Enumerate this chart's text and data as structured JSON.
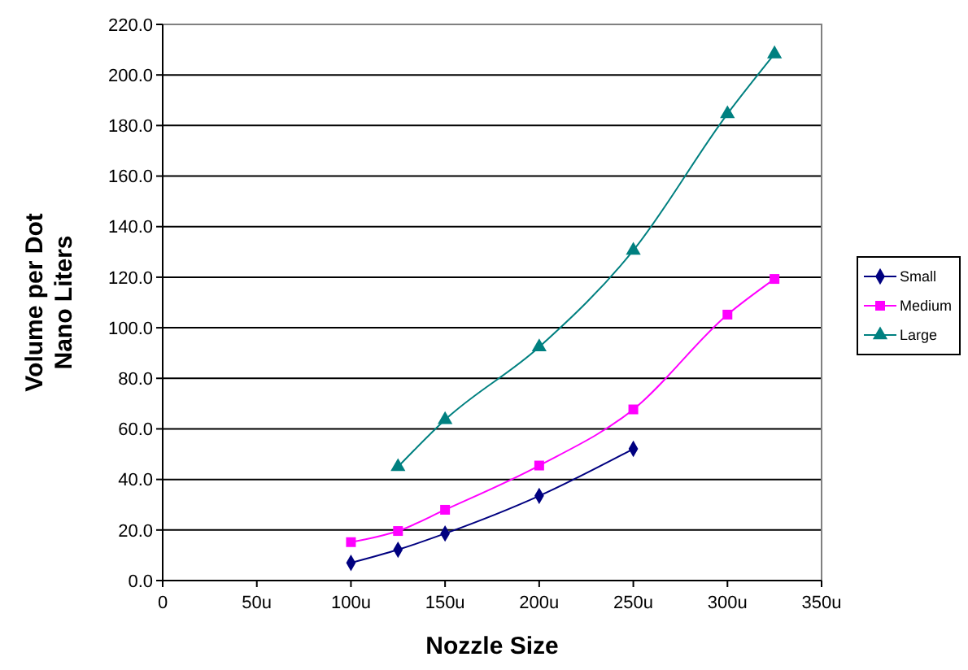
{
  "chart_data": {
    "type": "line",
    "xlabel": "Nozzle Size",
    "ylabel": "Volume per Dot\nNano Liters",
    "xlim": [
      0,
      350
    ],
    "xticks": [
      0,
      {
        "value": 50,
        "label": "50u"
      },
      {
        "value": 100,
        "label": "100u"
      },
      {
        "value": 150,
        "label": "150u"
      },
      {
        "value": 200,
        "label": "200u"
      },
      {
        "value": 250,
        "label": "250u"
      },
      {
        "value": 300,
        "label": "300u"
      },
      {
        "value": 350,
        "label": "350u"
      }
    ],
    "ylim": [
      0,
      220
    ],
    "yticks": [
      {
        "value": 0,
        "label": "0.0"
      },
      {
        "value": 20,
        "label": "20.0"
      },
      {
        "value": 40,
        "label": "40.0"
      },
      {
        "value": 60,
        "label": "60.0"
      },
      {
        "value": 80,
        "label": "80.0"
      },
      {
        "value": 100,
        "label": "100.0"
      },
      {
        "value": 120,
        "label": "120.0"
      },
      {
        "value": 140,
        "label": "140.0"
      },
      {
        "value": 160,
        "label": "160.0"
      },
      {
        "value": 180,
        "label": "180.0"
      },
      {
        "value": 200,
        "label": "200.0"
      },
      {
        "value": 220,
        "label": "220.0"
      }
    ],
    "grid": "y",
    "legend": "right",
    "line_style": "solid",
    "series": [
      {
        "name": "Small",
        "color": "#000080",
        "marker": "diamond",
        "x": [
          100,
          125,
          150,
          200,
          250
        ],
        "values": [
          7.0,
          12.2,
          18.6,
          33.5,
          52.1
        ]
      },
      {
        "name": "Medium",
        "color": "#ff00ff",
        "marker": "square",
        "x": [
          100,
          125,
          150,
          200,
          250,
          300,
          325
        ],
        "values": [
          15.2,
          19.6,
          28.0,
          45.5,
          67.7,
          105.2,
          119.3
        ]
      },
      {
        "name": "Large",
        "color": "#008080",
        "marker": "triangle",
        "x": [
          125,
          150,
          200,
          250,
          300,
          325
        ],
        "values": [
          45.0,
          63.6,
          92.4,
          130.6,
          184.6,
          208.3
        ]
      }
    ]
  }
}
